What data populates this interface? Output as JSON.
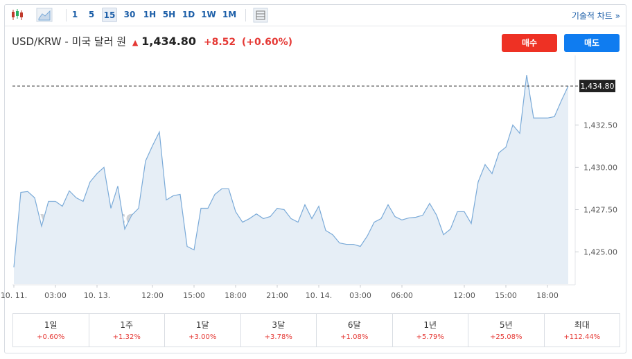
{
  "toolbar": {
    "intervals": [
      "1",
      "5",
      "15",
      "30",
      "1H",
      "5H",
      "1D",
      "1W",
      "1M"
    ],
    "active_interval": "15",
    "link": "기술적 차트 »"
  },
  "header": {
    "instrument": "USD/KRW - 미국 달러 원",
    "price": "1,434.80",
    "change": "+8.52",
    "change_percent": "(+0.60%)",
    "buy_button": "매수",
    "sell_button": "매도"
  },
  "chart_data": {
    "type": "area",
    "color": "#7aaad8",
    "fill": "#e6eef6",
    "watermark": "Investing.com",
    "categories": [
      "10. 11.",
      null,
      null,
      null,
      null,
      null,
      "03:00",
      null,
      null,
      null,
      null,
      null,
      "10. 13.",
      null,
      null,
      null,
      null,
      null,
      null,
      null,
      "12:00",
      null,
      null,
      null,
      null,
      null,
      "15:00",
      null,
      null,
      null,
      null,
      null,
      "18:00",
      null,
      null,
      null,
      null,
      null,
      "21:00",
      null,
      null,
      null,
      null,
      null,
      "10. 14.",
      null,
      null,
      null,
      null,
      null,
      "03:00",
      null,
      null,
      null,
      null,
      null,
      "06:00",
      null,
      null,
      null,
      null,
      null,
      null,
      null,
      null,
      "12:00",
      null,
      null,
      null,
      null,
      null,
      "15:00",
      null,
      null,
      null,
      null,
      null,
      "18:00",
      null,
      null,
      null
    ],
    "values": [
      1424.1,
      1428.52,
      1428.57,
      1428.2,
      1426.52,
      1427.99,
      1427.99,
      1427.7,
      1428.61,
      1428.2,
      1427.99,
      1429.14,
      1429.63,
      1430.0,
      1427.58,
      1428.89,
      1426.35,
      1427.17,
      1427.58,
      1430.37,
      1431.27,
      1432.09,
      1428.07,
      1428.32,
      1428.4,
      1425.33,
      1425.12,
      1427.58,
      1427.58,
      1428.4,
      1428.73,
      1428.73,
      1427.38,
      1426.76,
      1426.97,
      1427.25,
      1426.97,
      1427.09,
      1427.58,
      1427.5,
      1426.97,
      1426.76,
      1427.79,
      1426.97,
      1427.7,
      1426.27,
      1426.02,
      1425.53,
      1425.45,
      1425.45,
      1425.33,
      1425.94,
      1426.76,
      1426.97,
      1427.79,
      1427.09,
      1426.89,
      1427.01,
      1427.05,
      1427.17,
      1427.87,
      1427.17,
      1426.02,
      1426.35,
      1427.38,
      1427.38,
      1426.68,
      1429.14,
      1430.16,
      1429.63,
      1430.86,
      1431.19,
      1432.5,
      1432.01,
      1435.45,
      1432.91,
      1432.91,
      1432.91,
      1432.99,
      1433.93,
      1434.8
    ],
    "ylim": [
      1423.1,
      1436.4
    ],
    "yticks": [
      {
        "value": 1425,
        "label": "1,425.00"
      },
      {
        "value": 1427.5,
        "label": "1,427.50"
      },
      {
        "value": 1430,
        "label": "1,430.00"
      },
      {
        "value": 1432.5,
        "label": "1,432.50"
      }
    ],
    "price_line": {
      "value": 1434.8,
      "label": "1,434.80"
    }
  },
  "performance": {
    "periods": [
      "1일",
      "1주",
      "1달",
      "3달",
      "6달",
      "1년",
      "5년",
      "최대"
    ],
    "changes": [
      "+0.60%",
      "+1.32%",
      "+3.00%",
      "+3.78%",
      "+1.08%",
      "+5.79%",
      "+25.08%",
      "+112.44%"
    ]
  }
}
